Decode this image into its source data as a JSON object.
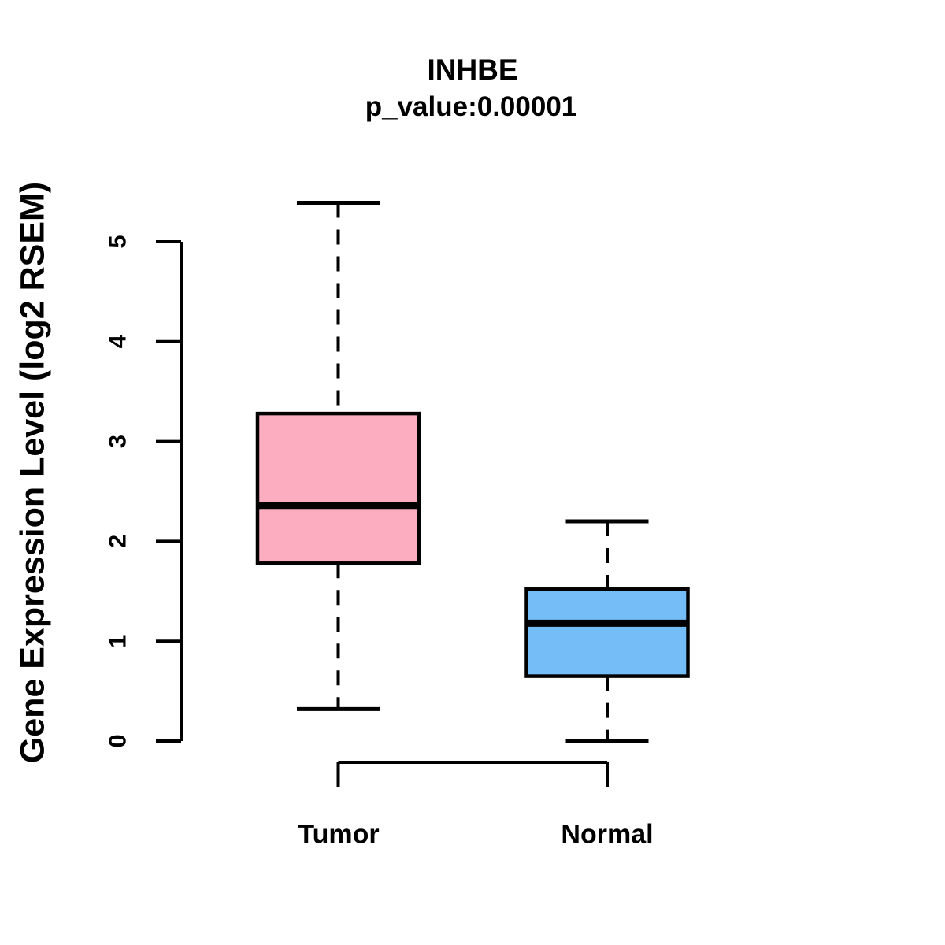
{
  "chart_data": {
    "type": "boxplot",
    "title": "INHBE",
    "subtitle": "p_value:0.00001",
    "ylabel": "Gene Expression Level (log2 RSEM)",
    "xlabel": "",
    "categories": [
      "Tumor",
      "Normal"
    ],
    "yticks": [
      0,
      1,
      2,
      3,
      4,
      5
    ],
    "ylim": [
      0,
      5.45
    ],
    "grid": false,
    "legend": "none",
    "series": [
      {
        "name": "Tumor",
        "min": 0.32,
        "q1": 1.78,
        "median": 2.36,
        "q3": 3.28,
        "max": 5.39,
        "fill": "#FCADC0"
      },
      {
        "name": "Normal",
        "min": 0.0,
        "q1": 0.65,
        "median": 1.18,
        "q3": 1.52,
        "max": 2.2,
        "fill": "#74BDF7"
      }
    ],
    "colors": {
      "stroke": "#000000",
      "background": "#FFFFFF",
      "tumor_fill": "#FCADC0",
      "normal_fill": "#74BDF7"
    }
  }
}
